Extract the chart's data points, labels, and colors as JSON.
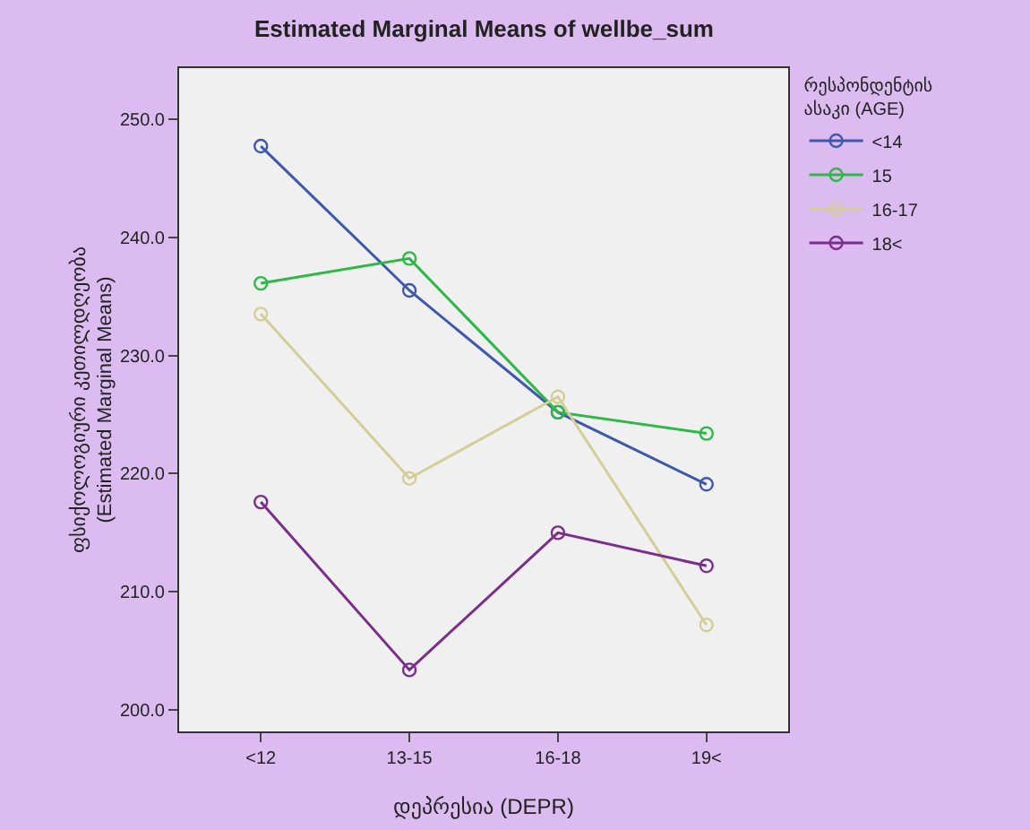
{
  "chart_data": {
    "type": "line",
    "title": "Estimated Marginal Means of wellbe_sum",
    "xlabel": "დეპრესია (DEPR)",
    "ylabel": "ფსიქოლოგიური კეთილდღეობა (Estimated Marginal Means)",
    "legend_title": "რესპონდენტის ასაკი (AGE)",
    "categories": [
      "<12",
      "13-15",
      "16-18",
      "19<"
    ],
    "series": [
      {
        "name": "<14",
        "color": "#3e58ac",
        "values": [
          247.7,
          235.5,
          225.2,
          219.1
        ]
      },
      {
        "name": "15",
        "color": "#2eb848",
        "values": [
          236.1,
          238.2,
          225.2,
          223.4
        ]
      },
      {
        "name": "16-17",
        "color": "#d3ce97",
        "values": [
          233.5,
          219.6,
          226.5,
          207.2
        ]
      },
      {
        "name": "18<",
        "color": "#7b2d8b",
        "values": [
          217.6,
          203.4,
          215.0,
          212.2
        ]
      }
    ],
    "ylim": [
      198.2,
      254.3
    ],
    "yticks": [
      {
        "value": 200,
        "label": "200.0"
      },
      {
        "value": 210,
        "label": "210.0"
      },
      {
        "value": 220,
        "label": "220.0"
      },
      {
        "value": 230,
        "label": "230.0"
      },
      {
        "value": 240,
        "label": "240.0"
      },
      {
        "value": 250,
        "label": "250.0"
      }
    ],
    "grid": false,
    "legend": "right",
    "marker": "circle",
    "line_style": "solid"
  }
}
